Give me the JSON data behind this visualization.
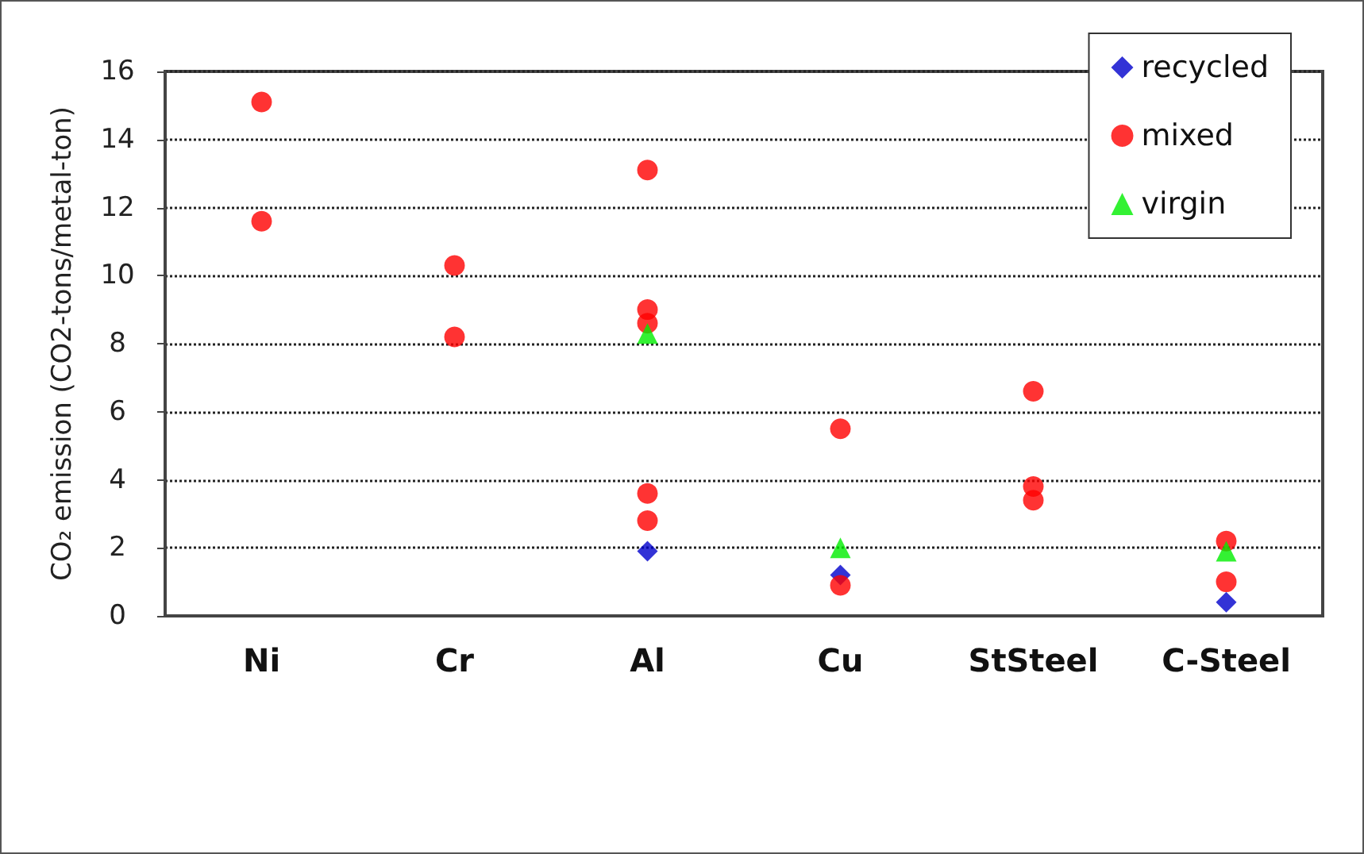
{
  "chart_data": {
    "type": "scatter",
    "ylabel": "CO₂ emission (CO2-tons/metal-ton)",
    "categories": [
      "Ni",
      "Cr",
      "Al",
      "Cu",
      "StSteel",
      "C-Steel"
    ],
    "series": [
      {
        "name": "recycled",
        "color": "#0000cc",
        "marker": "diamond",
        "x": [
          "Al",
          "Cu",
          "C-Steel"
        ],
        "values": [
          1.9,
          1.2,
          0.4
        ]
      },
      {
        "name": "mixed",
        "color": "#ff0000",
        "marker": "circle",
        "x": [
          "Ni",
          "Ni",
          "Cr",
          "Cr",
          "Al",
          "Al",
          "Al",
          "Al",
          "Al",
          "Cu",
          "Cu",
          "StSteel",
          "StSteel",
          "StSteel",
          "C-Steel",
          "C-Steel"
        ],
        "values": [
          15.1,
          11.6,
          10.3,
          8.2,
          13.1,
          9.0,
          8.6,
          3.6,
          2.8,
          5.5,
          0.9,
          6.6,
          3.8,
          3.4,
          2.2,
          1.0
        ]
      },
      {
        "name": "virgin",
        "color": "#00ee00",
        "marker": "triangle",
        "x": [
          "Al",
          "Cu",
          "C-Steel"
        ],
        "values": [
          8.3,
          2.0,
          1.9
        ]
      }
    ],
    "ylim": [
      0,
      16
    ],
    "yticks": [
      0,
      2,
      4,
      6,
      8,
      10,
      12,
      14,
      16
    ],
    "grid": "y",
    "legend": "top right"
  }
}
